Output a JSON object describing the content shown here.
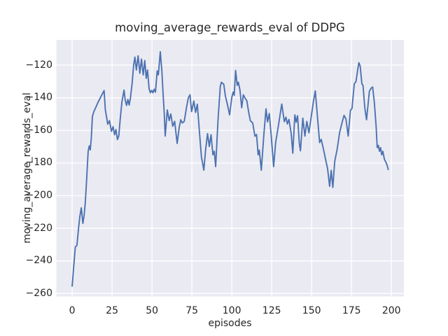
{
  "chart_data": {
    "type": "line",
    "title": "moving_average_rewards_eval of DDPG",
    "xlabel": "episodes",
    "ylabel": "moving_average_rewards_eval",
    "x_ticks": [
      0,
      25,
      50,
      75,
      100,
      125,
      150,
      175,
      200
    ],
    "y_ticks": [
      -120,
      -140,
      -160,
      -180,
      -200,
      -220,
      -240,
      -260
    ],
    "xlim": [
      -9.9,
      207.8
    ],
    "ylim": [
      -261.8,
      -104.55
    ],
    "grid": true,
    "legend": "none",
    "style": "seaborn-darkgrid",
    "colors": {
      "line": "#4C72B0",
      "plot_bg": "#EAEAF2",
      "grid": "#FFFFFF",
      "text": "#262626",
      "figure_bg": "#FFFFFF"
    },
    "series": [
      {
        "name": "moving_average_rewards_eval",
        "x": [
          0,
          1,
          2,
          3,
          4,
          4.8,
          5.7,
          6.7,
          7.5,
          8.2,
          9,
          10,
          10.7,
          11.3,
          12,
          12.7,
          13.6,
          15,
          16,
          17.5,
          19,
          20,
          20.8,
          21.6,
          22.3,
          23.4,
          24.6,
          25.6,
          26.6,
          27.4,
          28.4,
          29.2,
          30.1,
          31.2,
          32.5,
          33.3,
          34.1,
          34.9,
          35.7,
          36.5,
          37.6,
          38.5,
          39.3,
          40.2,
          41.3,
          42.4,
          43.4,
          44.5,
          45.5,
          46.4,
          47.2,
          48.2,
          49,
          49.8,
          50.6,
          51.4,
          52.2,
          53.3,
          54,
          55.2,
          56.2,
          57.1,
          57.7,
          58.3,
          59.6,
          60.8,
          61.8,
          63,
          64.2,
          65.8,
          67,
          68,
          69,
          70.2,
          71.6,
          72.8,
          73.8,
          74.8,
          76.2,
          77.3,
          78.4,
          79.8,
          81,
          82.5,
          83.6,
          84.8,
          85.9,
          87,
          88.2,
          89,
          89.9,
          91.4,
          92.8,
          93.5,
          95,
          96,
          97.2,
          98.6,
          100,
          100.8,
          101.5,
          102.4,
          103.4,
          104.1,
          105.1,
          106.2,
          107.2,
          108.3,
          109.4,
          110.6,
          111.6,
          113.1,
          114.5,
          115.5,
          116.5,
          117.2,
          118.5,
          120,
          121.4,
          122.4,
          123.5,
          124.7,
          126.2,
          127.5,
          128.3,
          129.8,
          131.3,
          132.9,
          133.9,
          134.8,
          135.8,
          137.2,
          138.2,
          139.5,
          140.3,
          141.2,
          142.3,
          143,
          144.5,
          145.8,
          147,
          148.3,
          149.7,
          151,
          152.3,
          153.5,
          155,
          156,
          157.5,
          159,
          160,
          161.3,
          162.3,
          163.3,
          164.5,
          166,
          167.5,
          169,
          170.3,
          171.5,
          172.9,
          174.3,
          175.3,
          176.7,
          177.8,
          179,
          179.6,
          180.4,
          181.5,
          182.2,
          183.3,
          184.4,
          186.2,
          187.3,
          188.2,
          189.3,
          190.4,
          191.1,
          191.8,
          192.5,
          193.2,
          193.9,
          194.6,
          195.6,
          196.5,
          197.3,
          198
        ],
        "y": [
          -255.5,
          -243,
          -231.5,
          -230.5,
          -220,
          -213,
          -207.5,
          -217,
          -212,
          -204.5,
          -191.5,
          -173,
          -169.5,
          -172,
          -165,
          -151.5,
          -148.5,
          -145.5,
          -143.2,
          -140.3,
          -137.5,
          -135.6,
          -147.5,
          -152,
          -156.2,
          -154,
          -160.6,
          -157.7,
          -162.7,
          -159.5,
          -165.6,
          -163.5,
          -153.3,
          -142.5,
          -135.3,
          -141.8,
          -144.7,
          -141,
          -144.5,
          -140.3,
          -131,
          -120.1,
          -115.1,
          -123,
          -114.3,
          -125,
          -116.3,
          -126,
          -117.2,
          -128.1,
          -123,
          -134.5,
          -137,
          -135.5,
          -137,
          -134.8,
          -136.5,
          -123.5,
          -126,
          -111.8,
          -124,
          -140,
          -150,
          -163.5,
          -147.5,
          -154,
          -150,
          -157.5,
          -154.5,
          -168,
          -158.5,
          -153.5,
          -155.5,
          -154.5,
          -146,
          -140,
          -138.2,
          -148.5,
          -142,
          -149,
          -144,
          -162,
          -176.4,
          -184.4,
          -172,
          -162,
          -169.9,
          -162.7,
          -175,
          -172.8,
          -182.2,
          -153.3,
          -133.1,
          -130.5,
          -131.8,
          -139,
          -144,
          -150.5,
          -140,
          -136.5,
          -138.5,
          -123.3,
          -132.4,
          -130.5,
          -135.3,
          -146.1,
          -138.2,
          -140.3,
          -141.8,
          -149,
          -154,
          -155.5,
          -163.6,
          -162.5,
          -175,
          -172.1,
          -184.4,
          -163.4,
          -146.8,
          -154.8,
          -149.7,
          -163.4,
          -182.2,
          -167,
          -162.5,
          -153.3,
          -143.9,
          -154.7,
          -151.9,
          -156.1,
          -153.3,
          -162,
          -174,
          -150.5,
          -155,
          -151,
          -168,
          -172.5,
          -152.5,
          -163.5,
          -154.5,
          -161.5,
          -152,
          -143,
          -135.8,
          -150,
          -167.5,
          -165.5,
          -172,
          -179,
          -183.5,
          -194.3,
          -184.5,
          -195,
          -179,
          -171.5,
          -161.5,
          -155.5,
          -150.8,
          -153,
          -163.5,
          -147.8,
          -146.5,
          -131.5,
          -130,
          -122,
          -118.5,
          -120.5,
          -131.5,
          -132.5,
          -146,
          -153.5,
          -136,
          -134.2,
          -133.4,
          -143,
          -157.5,
          -170.6,
          -169.2,
          -172.8,
          -170.6,
          -175,
          -172.8,
          -177.8,
          -179.5,
          -181.5,
          -184
        ]
      }
    ]
  }
}
